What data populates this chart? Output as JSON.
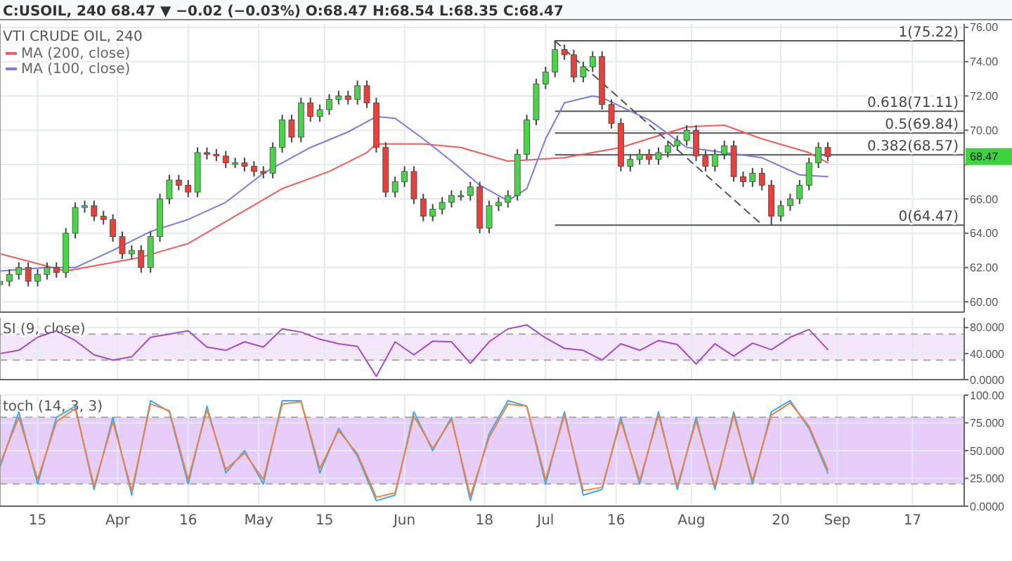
{
  "chart_data": [
    {
      "type": "candlestick",
      "title": "C:USOIL, 240  68.47 ▼ −0.02 (−0.03%) O:68.47 H:68.54 L:68.35 C:68.47",
      "subtitle": "VTI CRUDE OIL, 240",
      "x": [
        "--03-07",
        "--03-09",
        "--03-11",
        "--03-13",
        "--03-15",
        "--03-17",
        "--03-19",
        "--03-21",
        "--03-23",
        "--03-25",
        "--03-27",
        "--03-29",
        "--03-31",
        "--04-02",
        "--04-04",
        "--04-06",
        "--04-08",
        "--04-10",
        "--04-12",
        "--04-14",
        "--04-16",
        "--04-18",
        "--04-20",
        "--04-22",
        "--04-24",
        "--04-26",
        "--04-28",
        "--04-30",
        "--05-02",
        "--05-04",
        "--05-06",
        "--05-08",
        "--05-10",
        "--05-12",
        "--05-14",
        "--05-16",
        "--05-18",
        "--05-20",
        "--05-22",
        "--05-24",
        "--05-26",
        "--05-28",
        "--05-30",
        "--06-01",
        "--06-03",
        "--06-05",
        "--06-07",
        "--06-09",
        "--06-11",
        "--06-13",
        "--06-15",
        "--06-17",
        "--06-19",
        "--06-21",
        "--06-23",
        "--06-25",
        "--06-27",
        "--06-29",
        "--07-01",
        "--07-03",
        "--07-05",
        "--07-07",
        "--07-09",
        "--07-11",
        "--07-13",
        "--07-15",
        "--07-17",
        "--07-19",
        "--07-21",
        "--07-23",
        "--07-25",
        "--07-27",
        "--07-29",
        "--07-31",
        "--08-02",
        "--08-04",
        "--08-06",
        "--08-08",
        "--08-10",
        "--08-12",
        "--08-14",
        "--08-16",
        "--08-18",
        "--08-20",
        "--08-22",
        "--08-24",
        "--08-26",
        "--08-28",
        "--08-30"
      ],
      "ohlc": [
        [
          61.0,
          61.5,
          60.7,
          61.2
        ],
        [
          61.2,
          61.9,
          60.9,
          61.6
        ],
        [
          61.6,
          62.3,
          61.3,
          62.0
        ],
        [
          62.0,
          62.3,
          60.9,
          61.2
        ],
        [
          61.2,
          61.9,
          60.9,
          61.6
        ],
        [
          61.6,
          62.3,
          61.3,
          62.0
        ],
        [
          62.0,
          62.3,
          61.4,
          61.7
        ],
        [
          61.7,
          64.3,
          61.4,
          64.0
        ],
        [
          64.0,
          65.8,
          63.7,
          65.5
        ],
        [
          65.5,
          65.9,
          65.2,
          65.6
        ],
        [
          65.6,
          65.9,
          64.7,
          65.0
        ],
        [
          65.0,
          65.3,
          64.5,
          64.8
        ],
        [
          64.8,
          65.1,
          63.5,
          63.8
        ],
        [
          63.8,
          64.1,
          62.5,
          62.8
        ],
        [
          62.8,
          63.3,
          62.5,
          63.0
        ],
        [
          63.0,
          63.3,
          61.7,
          62.0
        ],
        [
          62.0,
          64.1,
          61.7,
          63.8
        ],
        [
          63.8,
          66.3,
          63.5,
          66.0
        ],
        [
          66.0,
          67.4,
          65.7,
          67.1
        ],
        [
          67.1,
          67.4,
          66.5,
          66.8
        ],
        [
          66.8,
          67.1,
          66.1,
          66.4
        ],
        [
          66.4,
          69.0,
          66.1,
          68.7
        ],
        [
          68.7,
          69.0,
          68.3,
          68.6
        ],
        [
          68.6,
          68.9,
          68.2,
          68.5
        ],
        [
          68.5,
          68.8,
          67.8,
          68.1
        ],
        [
          68.1,
          68.4,
          67.8,
          68.1
        ],
        [
          68.1,
          68.4,
          67.6,
          67.9
        ],
        [
          67.9,
          68.2,
          67.3,
          67.6
        ],
        [
          67.6,
          67.9,
          67.2,
          67.5
        ],
        [
          67.5,
          69.3,
          67.2,
          69.0
        ],
        [
          69.0,
          70.9,
          68.7,
          70.6
        ],
        [
          70.6,
          70.9,
          69.3,
          69.6
        ],
        [
          69.6,
          71.9,
          69.3,
          71.6
        ],
        [
          71.6,
          71.9,
          70.5,
          70.8
        ],
        [
          70.8,
          71.5,
          70.5,
          71.2
        ],
        [
          71.2,
          72.1,
          70.9,
          71.8
        ],
        [
          71.8,
          72.3,
          71.5,
          72.0
        ],
        [
          72.0,
          72.3,
          71.5,
          71.8
        ],
        [
          71.8,
          72.9,
          71.5,
          72.6
        ],
        [
          72.6,
          72.9,
          71.3,
          71.6
        ],
        [
          71.6,
          71.9,
          68.7,
          69.0
        ],
        [
          69.0,
          69.3,
          66.1,
          66.4
        ],
        [
          66.4,
          67.3,
          66.1,
          67.0
        ],
        [
          67.0,
          67.9,
          66.7,
          67.6
        ],
        [
          67.6,
          67.9,
          65.7,
          66.0
        ],
        [
          66.0,
          66.3,
          64.7,
          65.0
        ],
        [
          65.0,
          65.7,
          64.7,
          65.4
        ],
        [
          65.4,
          66.1,
          65.1,
          65.8
        ],
        [
          65.8,
          66.5,
          65.5,
          66.2
        ],
        [
          66.2,
          66.5,
          65.9,
          66.2
        ],
        [
          66.2,
          67.0,
          65.9,
          66.7
        ],
        [
          66.7,
          67.0,
          64.0,
          64.3
        ],
        [
          64.3,
          65.9,
          64.0,
          65.6
        ],
        [
          65.6,
          66.1,
          65.3,
          65.8
        ],
        [
          65.8,
          66.5,
          65.5,
          66.2
        ],
        [
          66.2,
          68.9,
          65.9,
          68.6
        ],
        [
          68.6,
          70.9,
          68.3,
          70.6
        ],
        [
          70.6,
          73.0,
          70.3,
          72.7
        ],
        [
          72.7,
          73.7,
          72.4,
          73.4
        ],
        [
          73.4,
          75.22,
          73.1,
          74.7
        ],
        [
          74.7,
          75.0,
          74.1,
          74.4
        ],
        [
          74.4,
          74.7,
          72.8,
          73.1
        ],
        [
          73.1,
          74.0,
          72.8,
          73.7
        ],
        [
          73.7,
          74.6,
          73.4,
          74.3
        ],
        [
          74.3,
          74.6,
          71.2,
          71.5
        ],
        [
          71.5,
          71.8,
          70.1,
          70.4
        ],
        [
          70.4,
          70.7,
          67.6,
          67.9
        ],
        [
          67.9,
          68.6,
          67.6,
          68.3
        ],
        [
          68.3,
          68.9,
          68.0,
          68.6
        ],
        [
          68.6,
          68.9,
          68.0,
          68.3
        ],
        [
          68.3,
          69.0,
          68.0,
          68.7
        ],
        [
          68.7,
          69.4,
          68.4,
          69.1
        ],
        [
          69.1,
          69.7,
          68.8,
          69.4
        ],
        [
          69.4,
          70.3,
          69.1,
          70.0
        ],
        [
          70.0,
          70.3,
          68.2,
          68.5
        ],
        [
          68.5,
          68.8,
          67.6,
          67.9
        ],
        [
          67.9,
          68.9,
          67.6,
          68.6
        ],
        [
          68.6,
          69.4,
          68.3,
          69.1
        ],
        [
          69.1,
          69.4,
          67.0,
          67.3
        ],
        [
          67.3,
          67.6,
          66.7,
          67.0
        ],
        [
          67.0,
          67.8,
          66.7,
          67.5
        ],
        [
          67.5,
          67.8,
          66.5,
          66.8
        ],
        [
          66.8,
          67.1,
          64.47,
          65.0
        ],
        [
          65.0,
          65.9,
          64.7,
          65.6
        ],
        [
          65.6,
          66.3,
          65.3,
          66.0
        ],
        [
          66.0,
          67.1,
          65.7,
          66.8
        ],
        [
          66.8,
          68.4,
          66.5,
          68.1
        ],
        [
          68.1,
          69.3,
          67.8,
          69.0
        ],
        [
          69.0,
          69.3,
          68.2,
          68.47
        ]
      ],
      "series": [
        {
          "type": "line",
          "name": "MA (200, close)",
          "color": "#f45b5b",
          "x": [
            "--03-07",
            "--03-21",
            "--04-06",
            "--04-16",
            "--04-26",
            "--05-06",
            "--05-16",
            "--05-24",
            "--05-26",
            "--06-05",
            "--06-13",
            "--06-23",
            "--07-05",
            "--07-17",
            "--07-31",
            "--08-08",
            "--08-16",
            "--08-26",
            "--08-30"
          ],
          "values": [
            62.8,
            61.8,
            62.6,
            63.4,
            65.0,
            66.6,
            67.6,
            68.7,
            69.2,
            69.2,
            69.0,
            68.2,
            68.4,
            69.0,
            70.2,
            70.3,
            69.5,
            68.7,
            68.1
          ]
        },
        {
          "type": "line",
          "name": "MA (100, close)",
          "color": "#7b7be0",
          "x": [
            "--03-07",
            "--03-17",
            "--03-23",
            "--03-31",
            "--04-08",
            "--04-16",
            "--04-24",
            "--05-02",
            "--05-12",
            "--05-20",
            "--05-26",
            "--05-30",
            "--06-05",
            "--06-11",
            "--06-17",
            "--06-23",
            "--06-27",
            "--07-01",
            "--07-05",
            "--07-11",
            "--07-13",
            "--07-23",
            "--07-31",
            "--08-08",
            "--08-16",
            "--08-24",
            "--08-30"
          ],
          "values": [
            61.8,
            62.0,
            62.0,
            63.0,
            64.1,
            64.8,
            65.8,
            67.5,
            69.0,
            69.9,
            70.8,
            70.7,
            69.5,
            68.2,
            66.8,
            65.9,
            66.6,
            69.5,
            71.6,
            72.0,
            71.9,
            70.6,
            69.0,
            68.7,
            68.4,
            67.4,
            67.3
          ]
        },
        {
          "type": "line",
          "color": "#555555",
          "line_style": "dashed",
          "x": [
            "--07-03",
            "--08-16"
          ],
          "values": [
            75.2,
            64.5
          ]
        }
      ],
      "xlim": [
        "--03-07",
        "--09-28"
      ],
      "xticks": [
        {
          "value": "--03-15",
          "label": null
        },
        {
          "value": "--04-01",
          "label": null
        },
        {
          "value": "--04-16",
          "label": null
        },
        {
          "value": "--05-01",
          "label": null
        },
        {
          "value": "--05-15",
          "label": null
        },
        {
          "value": "--06-01",
          "label": null
        },
        {
          "value": "--06-18",
          "label": null
        },
        {
          "value": "--07-01",
          "label": null
        },
        {
          "value": "--07-16",
          "label": null
        },
        {
          "value": "--08-01",
          "label": null
        },
        {
          "value": "--08-20",
          "label": null
        },
        {
          "value": "--09-01",
          "label": null
        },
        {
          "value": "--09-17",
          "label": null
        }
      ],
      "ylim": [
        59.4,
        76.2
      ],
      "yticks": [
        {
          "value": 60,
          "label": "60.00"
        },
        {
          "value": 62,
          "label": "62.00"
        },
        {
          "value": 64,
          "label": "64.00"
        },
        {
          "value": 66,
          "label": "66.00"
        },
        {
          "value": 68,
          "label": null
        },
        {
          "value": 70,
          "label": "70.00"
        },
        {
          "value": 72,
          "label": "72.00"
        },
        {
          "value": 74,
          "label": "74.00"
        },
        {
          "value": 76,
          "label": "76.00"
        }
      ],
      "grid": true,
      "legend": "top left",
      "tick_labels": "y",
      "ref_lines": [
        {
          "axis": "y",
          "value": 75.22,
          "label": "1(75.22)",
          "color": "#555555"
        },
        {
          "axis": "y",
          "value": 71.11,
          "label": "0.618(71.11)",
          "color": "#555555"
        },
        {
          "axis": "y",
          "value": 69.84,
          "label": "0.5(69.84)",
          "color": "#555555"
        },
        {
          "axis": "y",
          "value": 68.57,
          "label": "0.382(68.57)",
          "color": "#555555"
        },
        {
          "axis": "y",
          "value": 64.47,
          "label": "0(64.47)",
          "color": "#555555"
        }
      ],
      "annotations": [
        "68.47"
      ]
    },
    {
      "type": "line",
      "title": "SI (9, close)",
      "x": [
        "--03-07",
        "--03-11",
        "--03-15",
        "--03-19",
        "--03-23",
        "--03-27",
        "--03-31",
        "--04-04",
        "--04-08",
        "--04-12",
        "--04-16",
        "--04-20",
        "--04-24",
        "--04-28",
        "--05-02",
        "--05-06",
        "--05-10",
        "--05-14",
        "--05-18",
        "--05-22",
        "--05-26",
        "--05-30",
        "--06-03",
        "--06-07",
        "--06-11",
        "--06-15",
        "--06-19",
        "--06-23",
        "--06-27",
        "--07-01",
        "--07-05",
        "--07-09",
        "--07-13",
        "--07-17",
        "--07-21",
        "--07-25",
        "--07-29",
        "--08-02",
        "--08-06",
        "--08-10",
        "--08-14",
        "--08-18",
        "--08-22",
        "--08-26",
        "--08-30"
      ],
      "series": [
        {
          "color": "#a64ac9",
          "values": [
            40,
            45,
            65,
            75,
            60,
            38,
            30,
            35,
            65,
            70,
            75,
            50,
            45,
            58,
            50,
            78,
            73,
            62,
            55,
            51,
            5,
            58,
            38,
            59,
            58,
            25,
            58,
            78,
            84,
            64,
            48,
            45,
            30,
            55,
            45,
            60,
            54,
            24,
            55,
            36,
            56,
            46,
            65,
            77,
            46
          ]
        }
      ],
      "xlim": [
        "--03-07",
        "--09-28"
      ],
      "xticks": [
        {
          "value": "--03-15",
          "label": null
        },
        {
          "value": "--04-01",
          "label": null
        },
        {
          "value": "--04-16",
          "label": null
        },
        {
          "value": "--05-01",
          "label": null
        },
        {
          "value": "--05-15",
          "label": null
        },
        {
          "value": "--06-01",
          "label": null
        },
        {
          "value": "--06-18",
          "label": null
        },
        {
          "value": "--07-01",
          "label": null
        },
        {
          "value": "--07-16",
          "label": null
        },
        {
          "value": "--08-01",
          "label": null
        },
        {
          "value": "--08-20",
          "label": null
        },
        {
          "value": "--09-01",
          "label": null
        },
        {
          "value": "--09-17",
          "label": null
        }
      ],
      "ylim": [
        0,
        95
      ],
      "yticks": [
        {
          "value": 0,
          "label": "0.0000"
        },
        {
          "value": 40,
          "label": "40.000"
        },
        {
          "value": 80,
          "label": "80.000"
        }
      ],
      "bands": [
        {
          "axis": "y",
          "from": 30,
          "to": 70,
          "color": "#f4e6fb"
        }
      ],
      "ref_lines": [
        {
          "axis": "y",
          "value": 70,
          "color": "#aaaaaa",
          "line_style": "dashed"
        },
        {
          "axis": "y",
          "value": 30,
          "color": "#aaaaaa",
          "line_style": "dashed"
        }
      ],
      "grid": true,
      "tick_labels": "y"
    },
    {
      "type": "line",
      "title": "toch (14, 3, 3)",
      "x": [
        "--03-07",
        "--03-11",
        "--03-15",
        "--03-19",
        "--03-23",
        "--03-27",
        "--03-31",
        "--04-04",
        "--04-08",
        "--04-12",
        "--04-16",
        "--04-20",
        "--04-24",
        "--04-28",
        "--05-02",
        "--05-06",
        "--05-10",
        "--05-14",
        "--05-18",
        "--05-22",
        "--05-26",
        "--05-30",
        "--06-03",
        "--06-07",
        "--06-11",
        "--06-15",
        "--06-19",
        "--06-23",
        "--06-27",
        "--07-01",
        "--07-05",
        "--07-09",
        "--07-13",
        "--07-17",
        "--07-21",
        "--07-25",
        "--07-29",
        "--08-02",
        "--08-06",
        "--08-10",
        "--08-14",
        "--08-18",
        "--08-22",
        "--08-26",
        "--08-30"
      ],
      "series": [
        {
          "color": "#3fa9f5",
          "values": [
            35,
            85,
            20,
            80,
            90,
            15,
            80,
            10,
            95,
            85,
            20,
            90,
            30,
            50,
            20,
            95,
            95,
            30,
            70,
            45,
            5,
            10,
            85,
            50,
            80,
            5,
            65,
            95,
            90,
            20,
            85,
            10,
            15,
            80,
            20,
            85,
            15,
            80,
            15,
            85,
            20,
            85,
            95,
            70,
            30
          ]
        },
        {
          "color": "#f4803c",
          "values": [
            38,
            80,
            24,
            76,
            88,
            18,
            76,
            14,
            92,
            86,
            24,
            87,
            33,
            48,
            24,
            92,
            94,
            34,
            68,
            47,
            8,
            12,
            81,
            52,
            78,
            9,
            62,
            92,
            90,
            24,
            82,
            14,
            17,
            77,
            23,
            82,
            18,
            77,
            18,
            82,
            23,
            82,
            93,
            72,
            33
          ]
        }
      ],
      "xlim": [
        "--03-07",
        "--09-28"
      ],
      "xticks": [
        {
          "value": "--03-15",
          "label": "15"
        },
        {
          "value": "--04-01",
          "label": "Apr"
        },
        {
          "value": "--04-16",
          "label": "16"
        },
        {
          "value": "--05-01",
          "label": "May"
        },
        {
          "value": "--05-15",
          "label": "15"
        },
        {
          "value": "--06-01",
          "label": "Jun"
        },
        {
          "value": "--06-18",
          "label": "18"
        },
        {
          "value": "--07-01",
          "label": "Jul"
        },
        {
          "value": "--07-16",
          "label": "16"
        },
        {
          "value": "--08-01",
          "label": "Aug"
        },
        {
          "value": "--08-20",
          "label": "20"
        },
        {
          "value": "--09-01",
          "label": "Sep"
        },
        {
          "value": "--09-17",
          "label": "17"
        }
      ],
      "ylim": [
        0,
        100
      ],
      "yticks": [
        {
          "value": 0,
          "label": "0.0000"
        },
        {
          "value": 25,
          "label": "25.000"
        },
        {
          "value": 50,
          "label": "50.000"
        },
        {
          "value": 75,
          "label": "75.000"
        },
        {
          "value": 100,
          "label": "100.00"
        }
      ],
      "bands": [
        {
          "axis": "y",
          "from": 20,
          "to": 80,
          "color": "#e6cdfa"
        }
      ],
      "ref_lines": [
        {
          "axis": "y",
          "value": 80,
          "color": "#aaaaaa",
          "line_style": "dashed"
        },
        {
          "axis": "y",
          "value": 20,
          "color": "#aaaaaa",
          "line_style": "dashed"
        }
      ],
      "grid": true
    }
  ]
}
